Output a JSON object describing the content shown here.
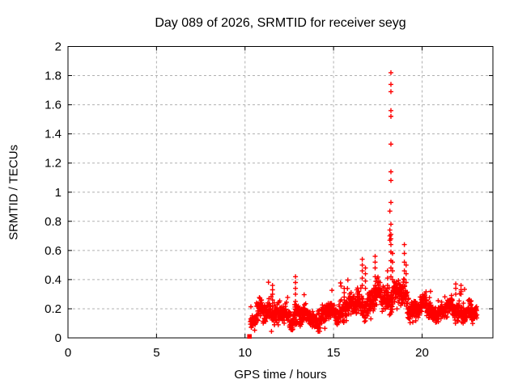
{
  "chart_data": {
    "type": "scatter",
    "title": "Day 089 of 2026, SRMTID for receiver seyg",
    "xlabel": "GPS time / hours",
    "ylabel": "SRMTID / TECUs",
    "xlim": [
      0,
      24
    ],
    "ylim": [
      0,
      2
    ],
    "xticks": [
      0,
      5,
      10,
      15,
      20
    ],
    "xtick_labels": [
      "0",
      "5",
      "10",
      "15",
      "20"
    ],
    "yticks": [
      0,
      0.2,
      0.4,
      0.6,
      0.8,
      1,
      1.2,
      1.4,
      1.6,
      1.8,
      2
    ],
    "ytick_labels": [
      "0",
      "0.2",
      "0.4",
      "0.6",
      "0.8",
      "1",
      "1.2",
      "1.4",
      "1.6",
      "1.8",
      "2"
    ],
    "grid": true,
    "legend": "none",
    "marker": "plus",
    "colors": {
      "marker": "#ff0000",
      "grid": "#b0b0b0",
      "frame": "#000000",
      "background": "#ffffff"
    },
    "data_start_hour": 10.3,
    "data_end_hour": 23.1,
    "sample_interval_hours": 0.008333,
    "seed": 42,
    "max_point": {
      "x": 18.24,
      "y": 1.82
    },
    "band_segments": [
      [
        10.3,
        10.62,
        0.11,
        0.05
      ],
      [
        10.62,
        11.05,
        0.17,
        0.07
      ],
      [
        11.05,
        11.45,
        0.2,
        0.08
      ],
      [
        11.45,
        11.8,
        0.17,
        0.07
      ],
      [
        11.8,
        12.35,
        0.15,
        0.07
      ],
      [
        12.35,
        12.72,
        0.13,
        0.06
      ],
      [
        12.72,
        13.05,
        0.18,
        0.08
      ],
      [
        13.05,
        13.55,
        0.14,
        0.06
      ],
      [
        13.55,
        14.1,
        0.13,
        0.06
      ],
      [
        14.1,
        14.65,
        0.16,
        0.07
      ],
      [
        14.65,
        15.3,
        0.17,
        0.06
      ],
      [
        15.3,
        16.3,
        0.21,
        0.08
      ],
      [
        16.3,
        17.05,
        0.25,
        0.1
      ],
      [
        17.05,
        17.62,
        0.26,
        0.1
      ],
      [
        17.62,
        18.02,
        0.28,
        0.09
      ],
      [
        18.02,
        18.45,
        0.31,
        0.1
      ],
      [
        18.45,
        18.82,
        0.29,
        0.09
      ],
      [
        18.82,
        19.25,
        0.27,
        0.09
      ],
      [
        19.25,
        20.2,
        0.21,
        0.06
      ],
      [
        20.2,
        21.05,
        0.19,
        0.06
      ],
      [
        21.05,
        21.6,
        0.18,
        0.06
      ],
      [
        21.6,
        22.4,
        0.21,
        0.08
      ],
      [
        22.4,
        23.1,
        0.16,
        0.07
      ]
    ],
    "spike_columns": [
      {
        "x": 11.55,
        "ys": [
          0.22,
          0.26,
          0.3,
          0.33,
          0.36
        ]
      },
      {
        "x": 12.85,
        "ys": [
          0.25,
          0.3,
          0.34,
          0.38,
          0.42
        ]
      },
      {
        "x": 15.6,
        "ys": [
          0.28,
          0.31,
          0.34
        ]
      },
      {
        "x": 16.62,
        "ys": [
          0.36,
          0.41,
          0.46,
          0.5,
          0.54
        ]
      },
      {
        "x": 16.8,
        "ys": [
          0.34,
          0.39,
          0.44,
          0.48
        ]
      },
      {
        "x": 17.35,
        "ys": [
          0.36,
          0.42,
          0.48,
          0.52,
          0.56
        ]
      },
      {
        "x": 18.05,
        "ys": [
          0.36,
          0.41,
          0.46
        ]
      },
      {
        "x": 18.18,
        "ys": [
          0.67,
          0.7,
          0.74,
          0.87
        ]
      },
      {
        "x": 18.24,
        "ys": [
          0.42,
          0.48,
          0.53,
          0.59,
          0.64,
          0.68,
          0.71,
          0.78,
          0.93,
          1.08,
          1.14,
          1.33,
          1.52,
          1.56,
          1.69,
          1.74,
          1.82
        ]
      },
      {
        "x": 18.33,
        "ys": [
          0.4,
          0.46,
          0.52,
          0.58
        ]
      },
      {
        "x": 19.0,
        "ys": [
          0.4,
          0.46,
          0.52,
          0.58,
          0.64
        ]
      },
      {
        "x": 19.1,
        "ys": [
          0.38,
          0.44,
          0.5
        ]
      },
      {
        "x": 21.9,
        "ys": [
          0.3,
          0.34,
          0.37
        ]
      },
      {
        "x": 22.2,
        "ys": [
          0.3,
          0.33,
          0.36
        ]
      }
    ],
    "point_squares": [
      [
        10.25,
        0.01
      ]
    ]
  }
}
